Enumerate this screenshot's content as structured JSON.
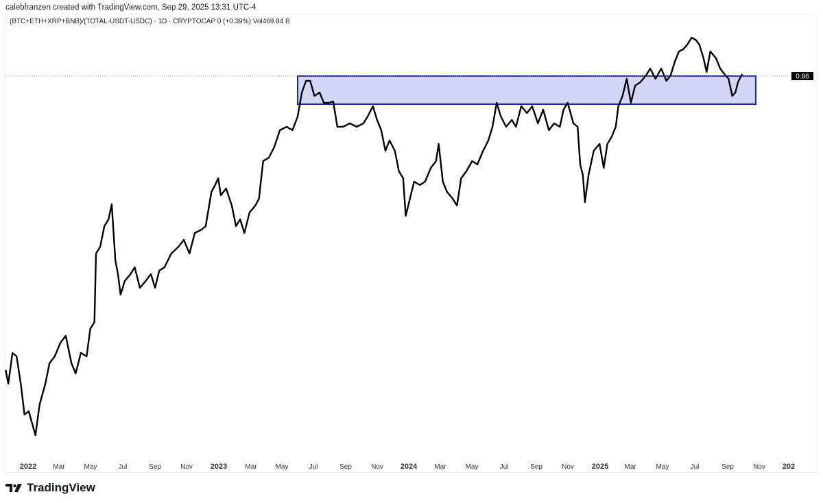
{
  "header": {
    "credit": "calebfranzen created with TradingView.com, Sep 29, 2025 13:31 UTC-4"
  },
  "legend": {
    "text": "(BTC+ETH+XRP+BNB)/(TOTAL-USDT-USDC) · 1D · CRYPTOCAP  0 (+0.39%)  Vol469.84 B"
  },
  "logo": {
    "text": "TradingView"
  },
  "colors": {
    "line": "#000000",
    "zone_fill": "#d3d6f5",
    "zone_border": "#1a27a6",
    "price_label_bg": "#000000"
  },
  "chart_data": {
    "type": "line",
    "title": "(BTC+ETH+XRP+BNB)/(TOTAL-USDT-USDC)",
    "x_unit": "days since 2022-01-01",
    "last_price_label": "0.86",
    "last_price": 0.86,
    "x_tick_labels": [
      "2022",
      "Mar",
      "May",
      "Jul",
      "Sep",
      "Nov",
      "2023",
      "Mar",
      "May",
      "Jul",
      "Sep",
      "Nov",
      "2024",
      "Mar",
      "May",
      "Jul",
      "Sep",
      "Nov",
      "2025",
      "Mar",
      "May",
      "Jul",
      "Sep",
      "Nov",
      "202"
    ],
    "zone": {
      "x_start": 516,
      "x_end": 1393,
      "y_top": 0.86,
      "y_bottom": 0.8395
    },
    "points": [
      [
        -43,
        0.6455
      ],
      [
        -38,
        0.6355
      ],
      [
        -30,
        0.658
      ],
      [
        -22,
        0.6555
      ],
      [
        -14,
        0.6355
      ],
      [
        -7,
        0.613
      ],
      [
        1,
        0.6155
      ],
      [
        14,
        0.598
      ],
      [
        22,
        0.6205
      ],
      [
        33,
        0.6355
      ],
      [
        41,
        0.6505
      ],
      [
        51,
        0.6555
      ],
      [
        62,
        0.6655
      ],
      [
        72,
        0.6705
      ],
      [
        83,
        0.6505
      ],
      [
        91,
        0.643
      ],
      [
        101,
        0.658
      ],
      [
        112,
        0.6555
      ],
      [
        119,
        0.6755
      ],
      [
        127,
        0.6805
      ],
      [
        130,
        0.7305
      ],
      [
        138,
        0.7355
      ],
      [
        146,
        0.7505
      ],
      [
        154,
        0.7555
      ],
      [
        160,
        0.7665
      ],
      [
        167,
        0.7255
      ],
      [
        172,
        0.7155
      ],
      [
        177,
        0.7005
      ],
      [
        185,
        0.7105
      ],
      [
        196,
        0.7155
      ],
      [
        204,
        0.7205
      ],
      [
        214,
        0.7055
      ],
      [
        225,
        0.7105
      ],
      [
        235,
        0.7155
      ],
      [
        243,
        0.7055
      ],
      [
        251,
        0.718
      ],
      [
        261,
        0.7205
      ],
      [
        274,
        0.7305
      ],
      [
        288,
        0.7355
      ],
      [
        298,
        0.7405
      ],
      [
        309,
        0.7305
      ],
      [
        319,
        0.7455
      ],
      [
        332,
        0.748
      ],
      [
        340,
        0.7505
      ],
      [
        351,
        0.7755
      ],
      [
        358,
        0.7805
      ],
      [
        364,
        0.7855
      ],
      [
        369,
        0.773
      ],
      [
        379,
        0.778
      ],
      [
        390,
        0.7655
      ],
      [
        398,
        0.7505
      ],
      [
        406,
        0.7555
      ],
      [
        414,
        0.7455
      ],
      [
        424,
        0.7605
      ],
      [
        435,
        0.7655
      ],
      [
        442,
        0.7705
      ],
      [
        450,
        0.798
      ],
      [
        461,
        0.8005
      ],
      [
        471,
        0.808
      ],
      [
        482,
        0.8205
      ],
      [
        495,
        0.823
      ],
      [
        506,
        0.8205
      ],
      [
        516,
        0.8305
      ],
      [
        524,
        0.848
      ],
      [
        532,
        0.8565
      ],
      [
        540,
        0.8565
      ],
      [
        548,
        0.8455
      ],
      [
        558,
        0.848
      ],
      [
        566,
        0.8405
      ],
      [
        576,
        0.8405
      ],
      [
        584,
        0.8415
      ],
      [
        592,
        0.823
      ],
      [
        603,
        0.823
      ],
      [
        616,
        0.8255
      ],
      [
        629,
        0.823
      ],
      [
        642,
        0.8255
      ],
      [
        650,
        0.8305
      ],
      [
        660,
        0.838
      ],
      [
        668,
        0.828
      ],
      [
        676,
        0.8205
      ],
      [
        684,
        0.8055
      ],
      [
        692,
        0.813
      ],
      [
        702,
        0.8055
      ],
      [
        710,
        0.7905
      ],
      [
        718,
        0.7855
      ],
      [
        723,
        0.758
      ],
      [
        731,
        0.7705
      ],
      [
        739,
        0.783
      ],
      [
        750,
        0.7805
      ],
      [
        760,
        0.783
      ],
      [
        771,
        0.793
      ],
      [
        781,
        0.798
      ],
      [
        786,
        0.8105
      ],
      [
        794,
        0.783
      ],
      [
        802,
        0.7755
      ],
      [
        813,
        0.7705
      ],
      [
        821,
        0.7655
      ],
      [
        829,
        0.7855
      ],
      [
        839,
        0.7905
      ],
      [
        850,
        0.798
      ],
      [
        860,
        0.7955
      ],
      [
        871,
        0.8055
      ],
      [
        881,
        0.813
      ],
      [
        889,
        0.823
      ],
      [
        897,
        0.8405
      ],
      [
        905,
        0.8305
      ],
      [
        915,
        0.823
      ],
      [
        926,
        0.828
      ],
      [
        934,
        0.823
      ],
      [
        944,
        0.838
      ],
      [
        955,
        0.833
      ],
      [
        965,
        0.838
      ],
      [
        976,
        0.8255
      ],
      [
        986,
        0.8355
      ],
      [
        997,
        0.8205
      ],
      [
        1007,
        0.8255
      ],
      [
        1018,
        0.823
      ],
      [
        1025,
        0.8355
      ],
      [
        1033,
        0.8405
      ],
      [
        1044,
        0.8255
      ],
      [
        1052,
        0.823
      ],
      [
        1057,
        0.7955
      ],
      [
        1062,
        0.788
      ],
      [
        1066,
        0.768
      ],
      [
        1073,
        0.788
      ],
      [
        1083,
        0.8055
      ],
      [
        1094,
        0.8105
      ],
      [
        1102,
        0.793
      ],
      [
        1109,
        0.8105
      ],
      [
        1117,
        0.8155
      ],
      [
        1125,
        0.823
      ],
      [
        1130,
        0.838
      ],
      [
        1138,
        0.8455
      ],
      [
        1146,
        0.858
      ],
      [
        1154,
        0.8405
      ],
      [
        1162,
        0.853
      ],
      [
        1172,
        0.8555
      ],
      [
        1183,
        0.8605
      ],
      [
        1191,
        0.8655
      ],
      [
        1201,
        0.858
      ],
      [
        1212,
        0.8655
      ],
      [
        1222,
        0.8565
      ],
      [
        1230,
        0.8605
      ],
      [
        1238,
        0.8705
      ],
      [
        1246,
        0.878
      ],
      [
        1254,
        0.8795
      ],
      [
        1262,
        0.883
      ],
      [
        1270,
        0.888
      ],
      [
        1278,
        0.8865
      ],
      [
        1285,
        0.883
      ],
      [
        1293,
        0.873
      ],
      [
        1299,
        0.863
      ],
      [
        1306,
        0.878
      ],
      [
        1317,
        0.873
      ],
      [
        1325,
        0.8655
      ],
      [
        1333,
        0.8615
      ],
      [
        1341,
        0.858
      ],
      [
        1348,
        0.8455
      ],
      [
        1354,
        0.848
      ],
      [
        1359,
        0.8555
      ],
      [
        1367,
        0.8615
      ]
    ]
  }
}
